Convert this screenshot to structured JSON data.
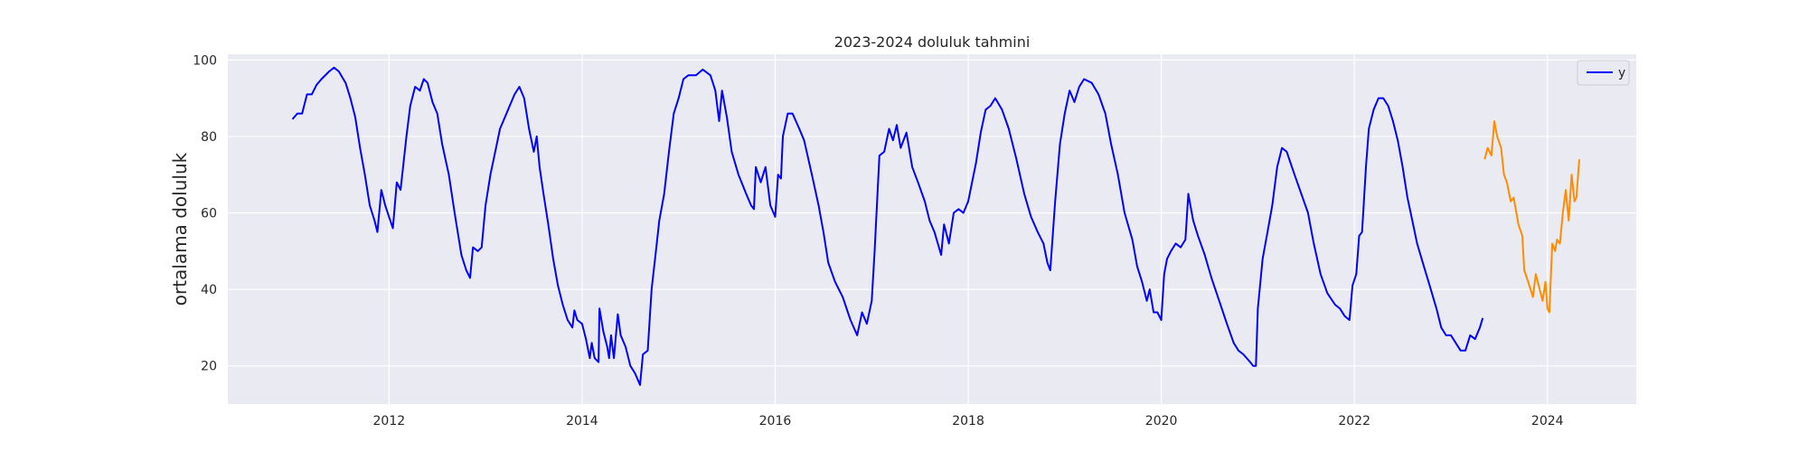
{
  "chart_data": {
    "type": "line",
    "title": "2023-2024 doluluk tahmini",
    "xlabel": "",
    "ylabel": "ortalama doluluk",
    "xlim": [
      2010.33,
      2024.92
    ],
    "ylim": [
      10,
      101.5
    ],
    "x_ticks": [
      2012,
      2014,
      2016,
      2018,
      2020,
      2022,
      2024
    ],
    "x_tick_labels": [
      "2012",
      "2014",
      "2016",
      "2018",
      "2020",
      "2022",
      "2024"
    ],
    "y_ticks": [
      20,
      40,
      60,
      80,
      100
    ],
    "y_tick_labels": [
      "20",
      "40",
      "60",
      "80",
      "100"
    ],
    "grid": true,
    "legend": {
      "position": "top-right",
      "entries": [
        "y"
      ]
    },
    "background": "#eaeaf2",
    "series": [
      {
        "name": "y",
        "color": "#0000ff",
        "points": [
          [
            2011.0,
            84.5
          ],
          [
            2011.05,
            86
          ],
          [
            2011.1,
            86
          ],
          [
            2011.15,
            91
          ],
          [
            2011.2,
            91
          ],
          [
            2011.25,
            93.5
          ],
          [
            2011.3,
            95
          ],
          [
            2011.38,
            97
          ],
          [
            2011.43,
            98
          ],
          [
            2011.48,
            97
          ],
          [
            2011.55,
            94
          ],
          [
            2011.6,
            90
          ],
          [
            2011.65,
            85
          ],
          [
            2011.7,
            77
          ],
          [
            2011.75,
            70
          ],
          [
            2011.8,
            62
          ],
          [
            2011.85,
            58
          ],
          [
            2011.88,
            55
          ],
          [
            2011.92,
            66
          ],
          [
            2011.96,
            62
          ],
          [
            2012.0,
            59
          ],
          [
            2012.04,
            56
          ],
          [
            2012.08,
            68
          ],
          [
            2012.12,
            66
          ],
          [
            2012.18,
            80
          ],
          [
            2012.22,
            88
          ],
          [
            2012.27,
            93
          ],
          [
            2012.32,
            92
          ],
          [
            2012.36,
            95
          ],
          [
            2012.4,
            94
          ],
          [
            2012.45,
            89
          ],
          [
            2012.5,
            86
          ],
          [
            2012.55,
            78
          ],
          [
            2012.62,
            70
          ],
          [
            2012.68,
            60
          ],
          [
            2012.75,
            49
          ],
          [
            2012.8,
            45
          ],
          [
            2012.84,
            43
          ],
          [
            2012.87,
            51
          ],
          [
            2012.92,
            50
          ],
          [
            2012.96,
            51
          ],
          [
            2013.0,
            62
          ],
          [
            2013.05,
            70
          ],
          [
            2013.1,
            76
          ],
          [
            2013.15,
            82
          ],
          [
            2013.2,
            85
          ],
          [
            2013.25,
            88
          ],
          [
            2013.3,
            91
          ],
          [
            2013.35,
            93
          ],
          [
            2013.4,
            90
          ],
          [
            2013.45,
            82
          ],
          [
            2013.5,
            76
          ],
          [
            2013.53,
            80
          ],
          [
            2013.56,
            72
          ],
          [
            2013.6,
            65
          ],
          [
            2013.65,
            57
          ],
          [
            2013.7,
            48
          ],
          [
            2013.75,
            41
          ],
          [
            2013.8,
            36
          ],
          [
            2013.85,
            32
          ],
          [
            2013.9,
            30
          ],
          [
            2013.92,
            34.5
          ],
          [
            2013.95,
            32
          ],
          [
            2014.0,
            31
          ],
          [
            2014.04,
            27
          ],
          [
            2014.08,
            22
          ],
          [
            2014.1,
            26
          ],
          [
            2014.13,
            22
          ],
          [
            2014.17,
            21
          ],
          [
            2014.18,
            35
          ],
          [
            2014.22,
            29
          ],
          [
            2014.26,
            25
          ],
          [
            2014.28,
            22
          ],
          [
            2014.3,
            28
          ],
          [
            2014.33,
            22
          ],
          [
            2014.37,
            33.5
          ],
          [
            2014.4,
            28
          ],
          [
            2014.45,
            25
          ],
          [
            2014.5,
            20
          ],
          [
            2014.55,
            18
          ],
          [
            2014.6,
            15
          ],
          [
            2014.63,
            23
          ],
          [
            2014.68,
            24
          ],
          [
            2014.72,
            40
          ],
          [
            2014.76,
            49
          ],
          [
            2014.8,
            58
          ],
          [
            2014.85,
            65
          ],
          [
            2014.9,
            76
          ],
          [
            2014.95,
            86
          ],
          [
            2015.0,
            90
          ],
          [
            2015.05,
            95
          ],
          [
            2015.1,
            96
          ],
          [
            2015.18,
            96
          ],
          [
            2015.25,
            97.5
          ],
          [
            2015.33,
            96
          ],
          [
            2015.38,
            92
          ],
          [
            2015.42,
            84
          ],
          [
            2015.45,
            92
          ],
          [
            2015.5,
            85
          ],
          [
            2015.55,
            76
          ],
          [
            2015.62,
            70
          ],
          [
            2015.7,
            65
          ],
          [
            2015.75,
            62
          ],
          [
            2015.78,
            61
          ],
          [
            2015.8,
            72
          ],
          [
            2015.85,
            68
          ],
          [
            2015.9,
            72
          ],
          [
            2015.95,
            62
          ],
          [
            2016.0,
            59
          ],
          [
            2016.03,
            70
          ],
          [
            2016.06,
            69
          ],
          [
            2016.08,
            80
          ],
          [
            2016.13,
            86
          ],
          [
            2016.18,
            86
          ],
          [
            2016.25,
            82
          ],
          [
            2016.3,
            79
          ],
          [
            2016.38,
            70
          ],
          [
            2016.45,
            62
          ],
          [
            2016.5,
            55
          ],
          [
            2016.55,
            47
          ],
          [
            2016.62,
            42
          ],
          [
            2016.7,
            38
          ],
          [
            2016.78,
            32
          ],
          [
            2016.85,
            28
          ],
          [
            2016.9,
            34
          ],
          [
            2016.95,
            31
          ],
          [
            2017.0,
            37
          ],
          [
            2017.03,
            50
          ],
          [
            2017.08,
            75
          ],
          [
            2017.13,
            76
          ],
          [
            2017.18,
            82
          ],
          [
            2017.22,
            79
          ],
          [
            2017.26,
            83
          ],
          [
            2017.3,
            77
          ],
          [
            2017.36,
            81
          ],
          [
            2017.42,
            72
          ],
          [
            2017.48,
            68
          ],
          [
            2017.55,
            63
          ],
          [
            2017.6,
            58
          ],
          [
            2017.65,
            55
          ],
          [
            2017.72,
            49
          ],
          [
            2017.75,
            57
          ],
          [
            2017.8,
            52
          ],
          [
            2017.85,
            60
          ],
          [
            2017.9,
            61
          ],
          [
            2017.95,
            60
          ],
          [
            2018.0,
            63
          ],
          [
            2018.08,
            73
          ],
          [
            2018.13,
            81
          ],
          [
            2018.18,
            87
          ],
          [
            2018.23,
            88
          ],
          [
            2018.28,
            90
          ],
          [
            2018.35,
            87
          ],
          [
            2018.42,
            82
          ],
          [
            2018.5,
            74
          ],
          [
            2018.58,
            65
          ],
          [
            2018.65,
            59
          ],
          [
            2018.72,
            55
          ],
          [
            2018.78,
            52
          ],
          [
            2018.82,
            47
          ],
          [
            2018.85,
            45
          ],
          [
            2018.9,
            63
          ],
          [
            2018.95,
            78
          ],
          [
            2019.0,
            86
          ],
          [
            2019.05,
            92
          ],
          [
            2019.1,
            89
          ],
          [
            2019.15,
            93
          ],
          [
            2019.2,
            95
          ],
          [
            2019.28,
            94
          ],
          [
            2019.35,
            91
          ],
          [
            2019.42,
            86
          ],
          [
            2019.48,
            78
          ],
          [
            2019.55,
            70
          ],
          [
            2019.62,
            60
          ],
          [
            2019.7,
            53
          ],
          [
            2019.75,
            46
          ],
          [
            2019.8,
            42
          ],
          [
            2019.85,
            37
          ],
          [
            2019.88,
            40
          ],
          [
            2019.92,
            34
          ],
          [
            2019.96,
            34
          ],
          [
            2020.0,
            32
          ],
          [
            2020.03,
            44
          ],
          [
            2020.06,
            48
          ],
          [
            2020.1,
            50
          ],
          [
            2020.15,
            52
          ],
          [
            2020.2,
            51
          ],
          [
            2020.25,
            53
          ],
          [
            2020.28,
            65
          ],
          [
            2020.33,
            58
          ],
          [
            2020.38,
            54
          ],
          [
            2020.45,
            49
          ],
          [
            2020.52,
            43
          ],
          [
            2020.6,
            37
          ],
          [
            2020.68,
            31
          ],
          [
            2020.75,
            26
          ],
          [
            2020.8,
            24
          ],
          [
            2020.85,
            23
          ],
          [
            2020.92,
            21
          ],
          [
            2020.95,
            20
          ],
          [
            2020.98,
            20
          ],
          [
            2021.0,
            35
          ],
          [
            2021.05,
            48
          ],
          [
            2021.1,
            55
          ],
          [
            2021.15,
            62
          ],
          [
            2021.2,
            72
          ],
          [
            2021.25,
            77
          ],
          [
            2021.3,
            76
          ],
          [
            2021.38,
            70
          ],
          [
            2021.45,
            65
          ],
          [
            2021.52,
            60
          ],
          [
            2021.58,
            52
          ],
          [
            2021.65,
            44
          ],
          [
            2021.72,
            39
          ],
          [
            2021.8,
            36
          ],
          [
            2021.85,
            35
          ],
          [
            2021.9,
            33
          ],
          [
            2021.95,
            32
          ],
          [
            2021.98,
            41
          ],
          [
            2022.02,
            44
          ],
          [
            2022.05,
            54
          ],
          [
            2022.08,
            55
          ],
          [
            2022.12,
            72
          ],
          [
            2022.15,
            82
          ],
          [
            2022.2,
            87
          ],
          [
            2022.25,
            90
          ],
          [
            2022.3,
            90
          ],
          [
            2022.35,
            88
          ],
          [
            2022.4,
            84
          ],
          [
            2022.45,
            79
          ],
          [
            2022.5,
            72
          ],
          [
            2022.55,
            64
          ],
          [
            2022.6,
            58
          ],
          [
            2022.65,
            52
          ],
          [
            2022.72,
            46
          ],
          [
            2022.78,
            41
          ],
          [
            2022.85,
            35
          ],
          [
            2022.9,
            30
          ],
          [
            2022.95,
            28
          ],
          [
            2023.0,
            28
          ],
          [
            2023.05,
            26
          ],
          [
            2023.1,
            24
          ],
          [
            2023.15,
            24
          ],
          [
            2023.2,
            28
          ],
          [
            2023.25,
            27
          ],
          [
            2023.3,
            30
          ],
          [
            2023.33,
            32.5
          ]
        ]
      },
      {
        "name": "",
        "color": "#ff8c00",
        "points": [
          [
            2023.35,
            74
          ],
          [
            2023.38,
            77
          ],
          [
            2023.42,
            75
          ],
          [
            2023.45,
            84
          ],
          [
            2023.48,
            80
          ],
          [
            2023.52,
            77
          ],
          [
            2023.55,
            70
          ],
          [
            2023.58,
            68
          ],
          [
            2023.62,
            63
          ],
          [
            2023.65,
            64
          ],
          [
            2023.7,
            57
          ],
          [
            2023.74,
            54
          ],
          [
            2023.76,
            45
          ],
          [
            2023.8,
            42
          ],
          [
            2023.85,
            38
          ],
          [
            2023.88,
            44
          ],
          [
            2023.92,
            40
          ],
          [
            2023.95,
            37
          ],
          [
            2023.98,
            42
          ],
          [
            2024.0,
            35
          ],
          [
            2024.02,
            34
          ],
          [
            2024.05,
            52
          ],
          [
            2024.08,
            50
          ],
          [
            2024.1,
            53
          ],
          [
            2024.13,
            52
          ],
          [
            2024.16,
            60
          ],
          [
            2024.19,
            66
          ],
          [
            2024.22,
            58
          ],
          [
            2024.25,
            70
          ],
          [
            2024.28,
            63
          ],
          [
            2024.3,
            64
          ],
          [
            2024.33,
            74
          ]
        ]
      }
    ]
  }
}
